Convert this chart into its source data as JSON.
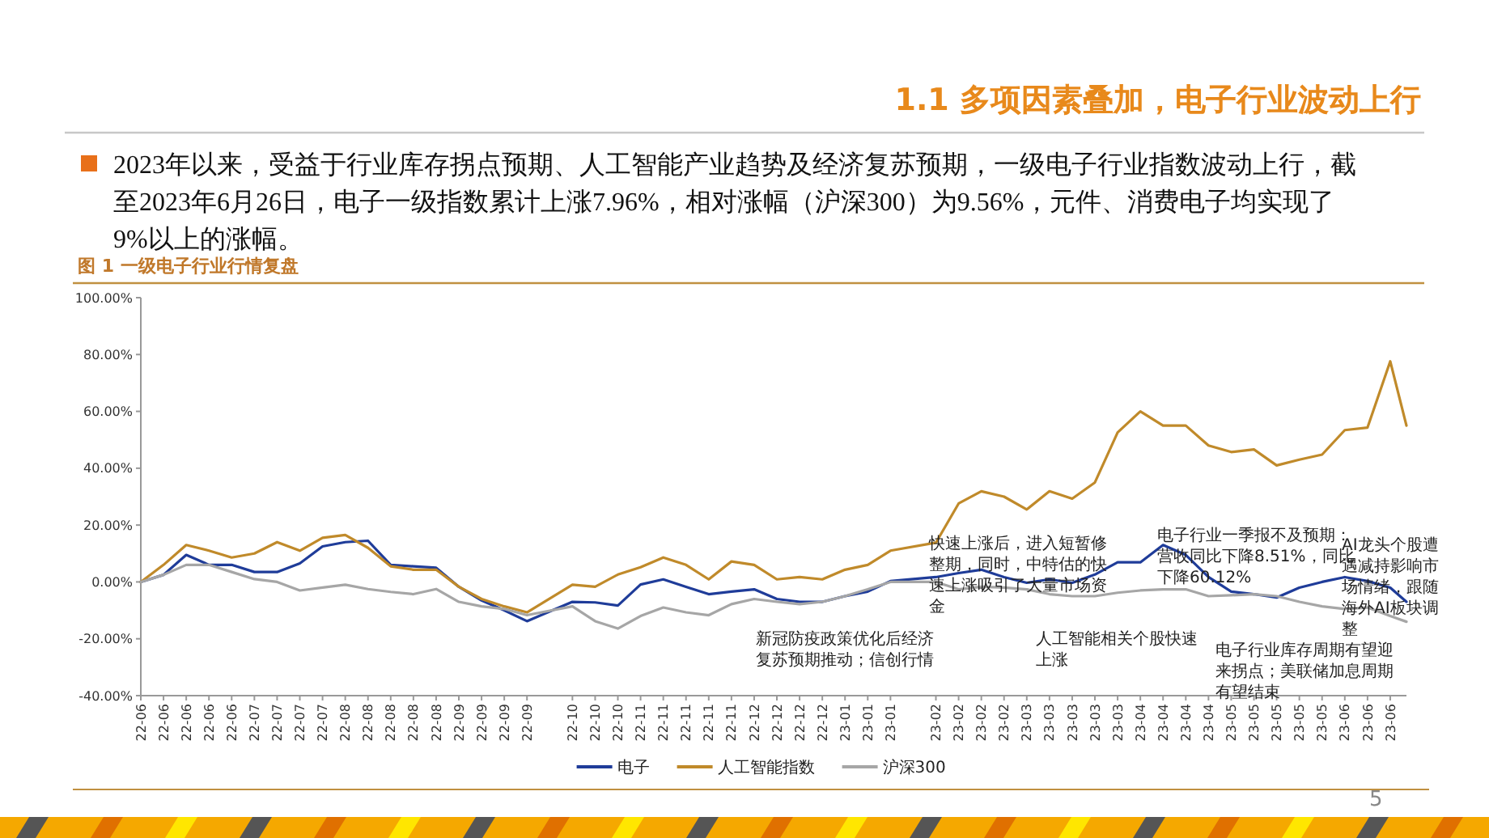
{
  "chart_data": {
    "type": "line",
    "title": "1.1 多项因素叠加，电子行业波动上行",
    "subtitle": "2023年以来，受益于行业库存拐点预期、人工智能产业趋势及经济复苏预期，一级电子行业指数波动上行，截至2023年6月26日，电子一级指数累计上涨7.96%，相对涨幅（沪深300）为9.56%，元件、消费电子均实现了9%以上的涨幅。",
    "x": [
      "2022-06-01",
      "2022-06-08",
      "2022-06-15",
      "2022-06-22",
      "2022-06-29",
      "2022-07-06",
      "2022-07-13",
      "2022-07-20",
      "2022-07-27",
      "2022-08-03",
      "2022-08-10",
      "2022-08-17",
      "2022-08-24",
      "2022-08-31",
      "2022-09-07",
      "2022-09-14",
      "2022-09-21",
      "2022-09-28",
      "2022-10-12",
      "2022-10-19",
      "2022-10-26",
      "2022-11-02",
      "2022-11-09",
      "2022-11-16",
      "2022-11-23",
      "2022-11-30",
      "2022-12-07",
      "2022-12-14",
      "2022-12-21",
      "2022-12-28",
      "2023-01-04",
      "2023-01-11",
      "2023-01-18",
      "2023-02-01",
      "2023-02-08",
      "2023-02-15",
      "2023-02-22",
      "2023-03-01",
      "2023-03-08",
      "2023-03-15",
      "2023-03-22",
      "2023-03-29",
      "2023-04-05",
      "2023-04-12",
      "2023-04-19",
      "2023-04-26",
      "2023-05-03",
      "2023-05-10",
      "2023-05-17",
      "2023-05-24",
      "2023-05-31",
      "2023-06-07",
      "2023-06-14",
      "2023-06-21",
      "2023-06-26"
    ],
    "series": [
      {
        "name": "电子",
        "color": "#1f3c99",
        "values": [
          0,
          2.5,
          9.5,
          6,
          6,
          3.5,
          3.5,
          6.5,
          12.5,
          14,
          14.5,
          6,
          5.5,
          5,
          -1.7,
          -6.5,
          -10,
          -13.8,
          -7,
          -7.2,
          -8.3,
          -0.9,
          0.9,
          -1.7,
          -4.3,
          -3.4,
          -2.6,
          -6,
          -7,
          -7,
          -5,
          -3.4,
          0.3,
          1.7,
          3.1,
          4.3,
          1.7,
          -0.3,
          0.9,
          -0.3,
          2.6,
          6.9,
          6.9,
          13,
          9.5,
          1.7,
          -3.4,
          -4.3,
          -5.5,
          -2,
          0,
          1.7,
          0.3,
          -2,
          -7
        ]
      },
      {
        "name": "人工智能指数",
        "color": "#c08a2a",
        "values": [
          0,
          6,
          13,
          11,
          8.6,
          10,
          14,
          11,
          15.5,
          16.5,
          12,
          5.5,
          4.3,
          4.3,
          -1.7,
          -6,
          -8.6,
          -10.7,
          -1,
          -1.7,
          2.6,
          5.2,
          8.6,
          6,
          0.9,
          7.2,
          6,
          0.9,
          1.7,
          0.9,
          4.3,
          6,
          11,
          13.8,
          27.6,
          31.9,
          30,
          25.5,
          31.9,
          29.3,
          35,
          52.6,
          60,
          55,
          55,
          48,
          45.7,
          46.6,
          41,
          43,
          44.8,
          53.4,
          54.3,
          77.6,
          55
        ]
      },
      {
        "name": "沪深300",
        "color": "#a6a6a6",
        "values": [
          0,
          2.5,
          6,
          6,
          3.5,
          1,
          0,
          -3,
          -2,
          -1,
          -2.5,
          -3.5,
          -4.3,
          -2.5,
          -7,
          -8.6,
          -9.5,
          -11.7,
          -8.6,
          -13.8,
          -16.4,
          -12,
          -9,
          -10.7,
          -11.7,
          -7.8,
          -6,
          -7,
          -7.8,
          -7,
          -5,
          -2.6,
          0,
          0,
          -2.6,
          -1.7,
          -2,
          -2.6,
          -4.3,
          -5,
          -5,
          -3.8,
          -3,
          -2.6,
          -2.6,
          -5,
          -4.7,
          -4.3,
          -5,
          -7,
          -8.6,
          -9.5,
          -9,
          -12,
          -14
        ]
      }
    ],
    "xlim": [
      "2022-06-01",
      "2023-06-26"
    ],
    "xticks": [
      {
        "value": "2022-06-01",
        "label": "22-06"
      },
      {
        "value": "2022-06-08",
        "label": "22-06"
      },
      {
        "value": "2022-06-15",
        "label": "22-06"
      },
      {
        "value": "2022-06-22",
        "label": "22-06"
      },
      {
        "value": "2022-06-29",
        "label": "22-06"
      },
      {
        "value": "2022-07-06",
        "label": "22-07"
      },
      {
        "value": "2022-07-13",
        "label": "22-07"
      },
      {
        "value": "2022-07-20",
        "label": "22-07"
      },
      {
        "value": "2022-07-27",
        "label": "22-07"
      },
      {
        "value": "2022-08-03",
        "label": "22-08"
      },
      {
        "value": "2022-08-10",
        "label": "22-08"
      },
      {
        "value": "2022-08-17",
        "label": "22-08"
      },
      {
        "value": "2022-08-24",
        "label": "22-08"
      },
      {
        "value": "2022-08-31",
        "label": "22-08"
      },
      {
        "value": "2022-09-07",
        "label": "22-09"
      },
      {
        "value": "2022-09-14",
        "label": "22-09"
      },
      {
        "value": "2022-09-21",
        "label": "22-09"
      },
      {
        "value": "2022-09-28",
        "label": "22-09"
      },
      {
        "value": "2022-10-12",
        "label": "22-10"
      },
      {
        "value": "2022-10-19",
        "label": "22-10"
      },
      {
        "value": "2022-10-26",
        "label": "22-10"
      },
      {
        "value": "2022-11-02",
        "label": "22-11"
      },
      {
        "value": "2022-11-09",
        "label": "22-11"
      },
      {
        "value": "2022-11-16",
        "label": "22-11"
      },
      {
        "value": "2022-11-23",
        "label": "22-11"
      },
      {
        "value": "2022-11-30",
        "label": "22-11"
      },
      {
        "value": "2022-12-07",
        "label": "22-12"
      },
      {
        "value": "2022-12-14",
        "label": "22-12"
      },
      {
        "value": "2022-12-21",
        "label": "22-12"
      },
      {
        "value": "2022-12-28",
        "label": "22-12"
      },
      {
        "value": "2023-01-04",
        "label": "23-01"
      },
      {
        "value": "2023-01-11",
        "label": "23-01"
      },
      {
        "value": "2023-01-18",
        "label": "23-01"
      },
      {
        "value": "2023-02-01",
        "label": "23-02"
      },
      {
        "value": "2023-02-08",
        "label": "23-02"
      },
      {
        "value": "2023-02-15",
        "label": "23-02"
      },
      {
        "value": "2023-02-22",
        "label": "23-02"
      },
      {
        "value": "2023-03-01",
        "label": "23-03"
      },
      {
        "value": "2023-03-08",
        "label": "23-03"
      },
      {
        "value": "2023-03-15",
        "label": "23-03"
      },
      {
        "value": "2023-03-22",
        "label": "23-03"
      },
      {
        "value": "2023-03-29",
        "label": "23-03"
      },
      {
        "value": "2023-04-05",
        "label": "23-04"
      },
      {
        "value": "2023-04-12",
        "label": "23-04"
      },
      {
        "value": "2023-04-19",
        "label": "23-04"
      },
      {
        "value": "2023-04-26",
        "label": "23-04"
      },
      {
        "value": "2023-05-03",
        "label": "23-05"
      },
      {
        "value": "2023-05-10",
        "label": "23-05"
      },
      {
        "value": "2023-05-17",
        "label": "23-05"
      },
      {
        "value": "2023-05-24",
        "label": "23-05"
      },
      {
        "value": "2023-05-31",
        "label": "23-05"
      },
      {
        "value": "2023-06-07",
        "label": "23-06"
      },
      {
        "value": "2023-06-14",
        "label": "23-06"
      },
      {
        "value": "2023-06-21",
        "label": "23-06"
      }
    ],
    "ylim": [
      -40,
      100
    ],
    "yticks": [
      {
        "value": -40,
        "label": "-40.00%"
      },
      {
        "value": -20,
        "label": "-20.00%"
      },
      {
        "value": 0,
        "label": "0.00%"
      },
      {
        "value": 20,
        "label": "20.00%"
      },
      {
        "value": 40,
        "label": "40.00%"
      },
      {
        "value": 60,
        "label": "60.00%"
      },
      {
        "value": 80,
        "label": "80.00%"
      },
      {
        "value": 100,
        "label": "100.00%"
      }
    ],
    "annotations": [
      "图 1 一级电子行业行情复盘",
      "新冠防疫政策优化后经济复苏预期推动；信创行情",
      "快速上涨后，进入短暂修整期，同时，中特估的快速上涨吸引了大量市场资金",
      "人工智能相关个股快速上涨",
      "电子行业一季报不及预期：营收同比下降8.51%，同比下降60.12%",
      "电子行业库存周期有望迎来拐点；美联储加息周期有望结束",
      "AI龙头个股遭遇减持影响市场情绪，跟随海外AI板块调整",
      "5"
    ],
    "legend": "bottom",
    "grid": false,
    "marker": "none",
    "line_style": "solid"
  }
}
